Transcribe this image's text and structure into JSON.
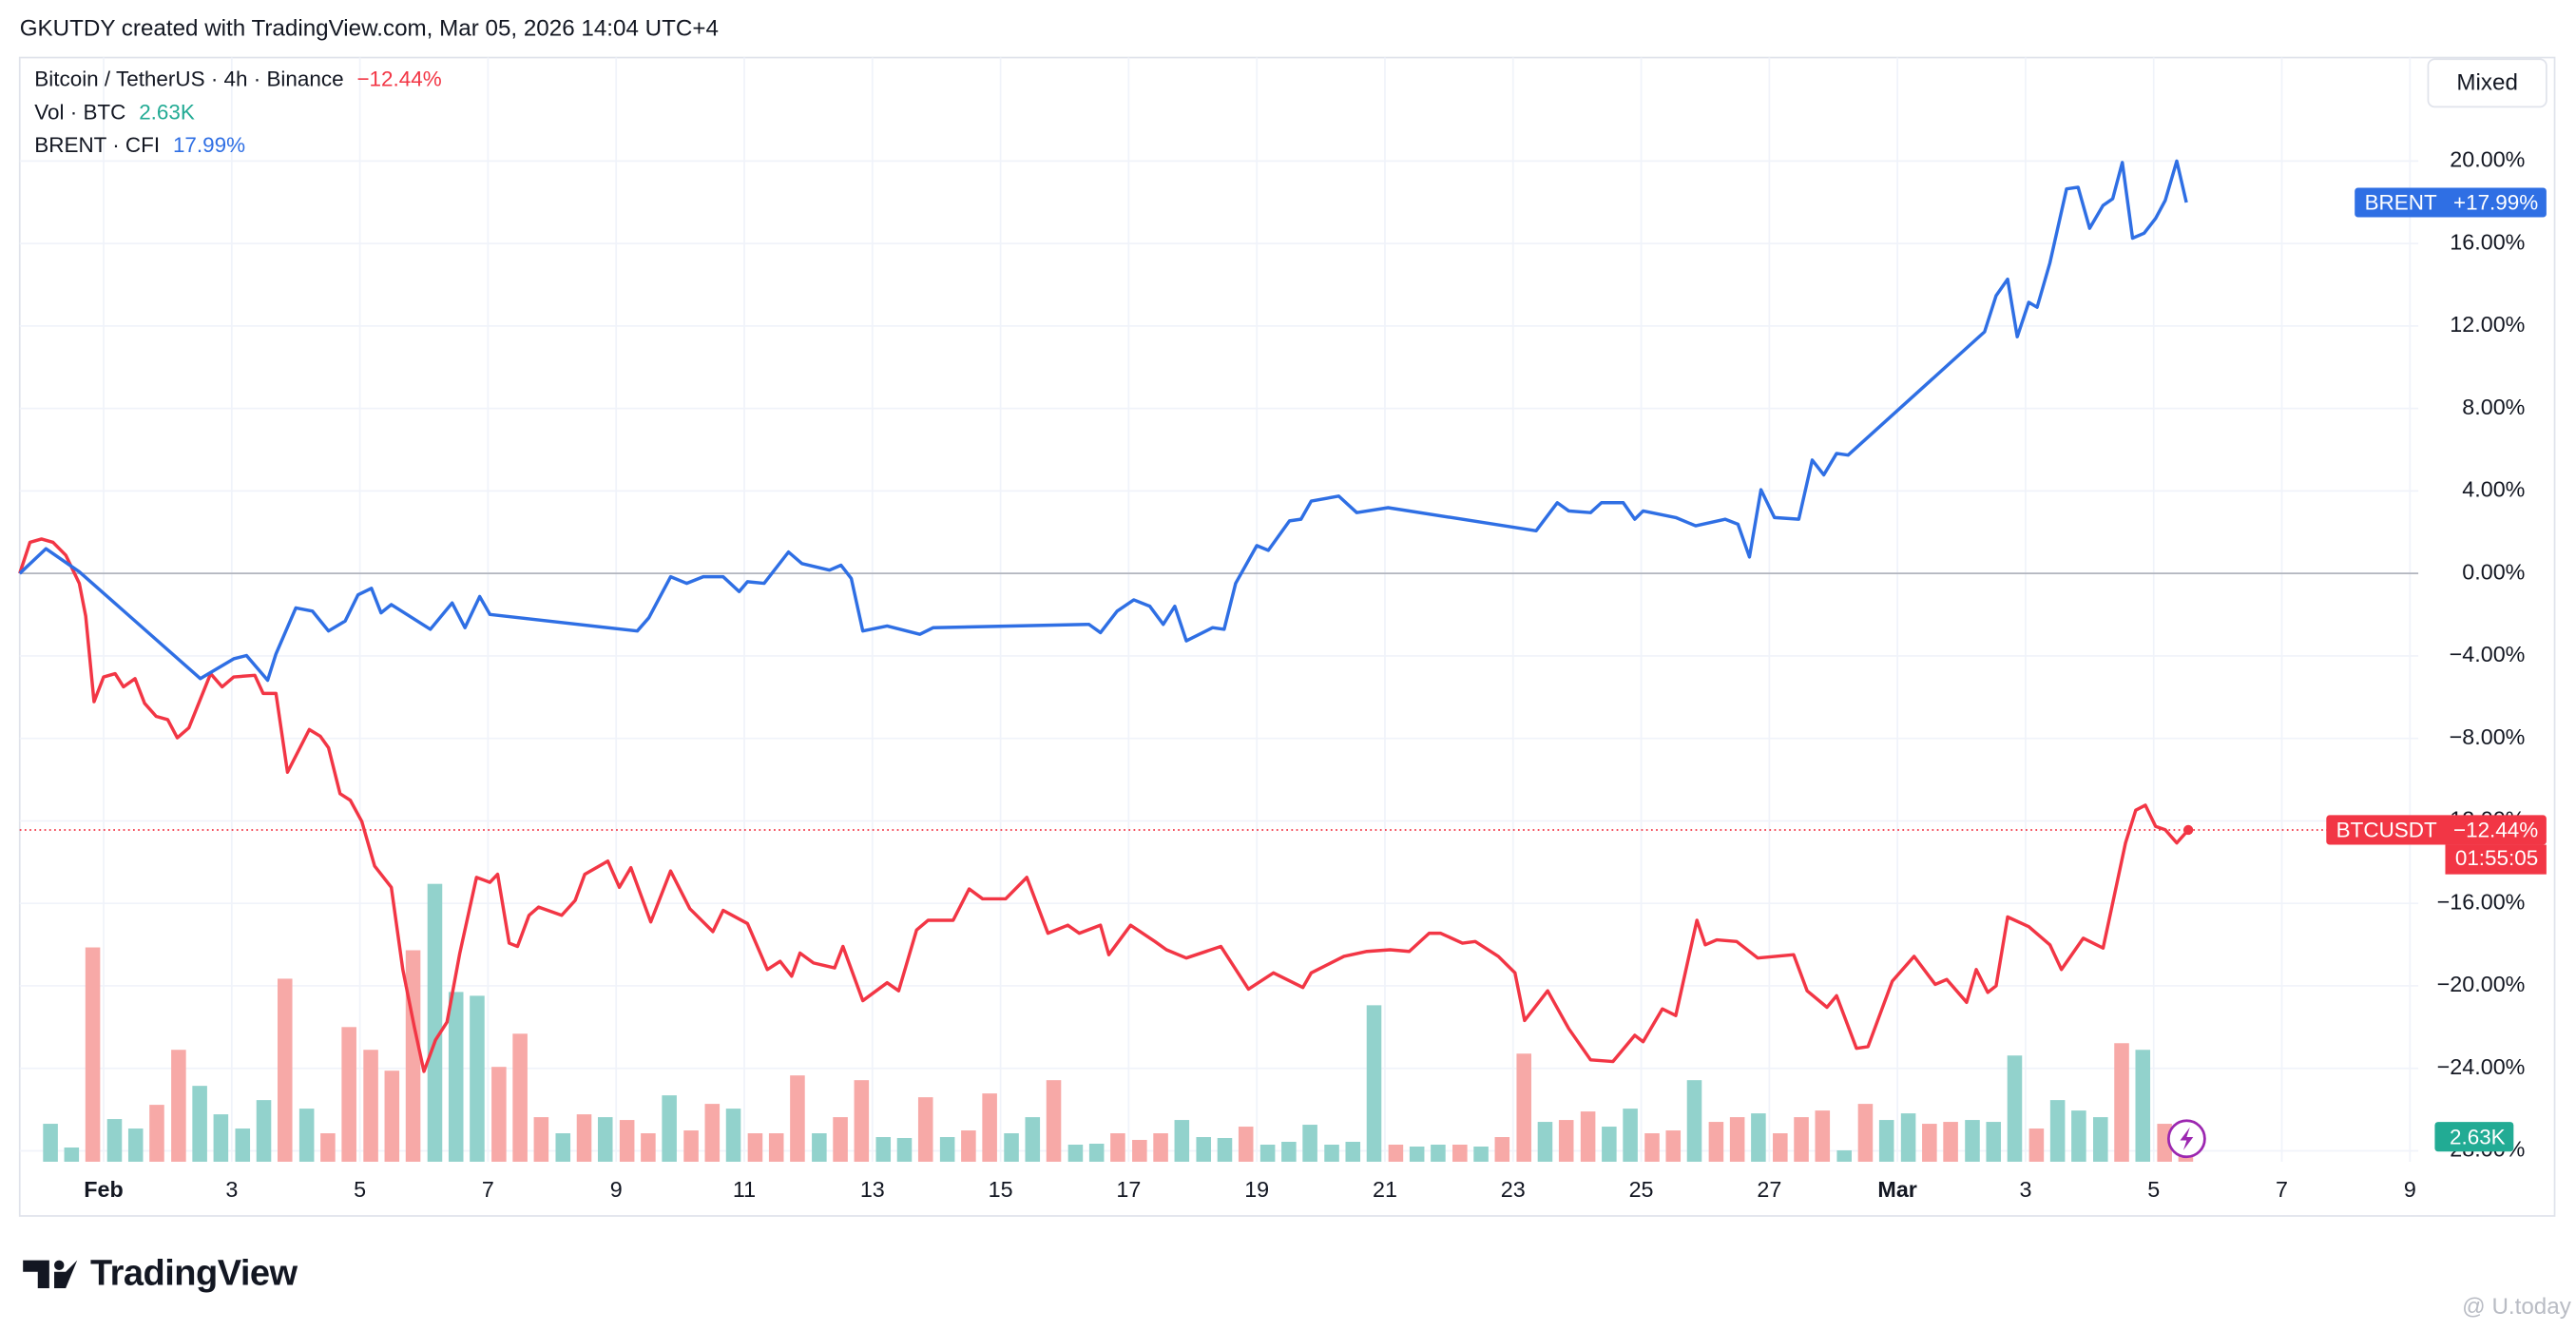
{
  "header": "GKUTDY created with TradingView.com, Mar 05, 2026 14:04 UTC+4",
  "toolbar": {
    "scale_mode": "Mixed"
  },
  "footer": {
    "logo": "TradingView",
    "watermark": "@ U.today"
  },
  "chart_data": {
    "type": "line",
    "legend": "top-left",
    "grid": true,
    "xlim": [
      -0.31,
      37.13
    ],
    "xticks": [
      {
        "value": 1,
        "label": "Feb"
      },
      3,
      5,
      7,
      9,
      11,
      13,
      15,
      17,
      19,
      21,
      23,
      25,
      27,
      {
        "value": 29,
        "label": "Mar"
      },
      {
        "value": 31,
        "label": "3"
      },
      {
        "value": 33,
        "label": "5"
      },
      {
        "value": 35,
        "label": "7"
      },
      {
        "value": 37,
        "label": "9"
      }
    ],
    "ylim": [
      -28.53,
      25.02
    ],
    "yticks": [
      {
        "value": 20,
        "label": "20.00%"
      },
      {
        "value": 16,
        "label": "16.00%"
      },
      {
        "value": 12,
        "label": "12.00%"
      },
      {
        "value": 8,
        "label": "8.00%"
      },
      {
        "value": 4,
        "label": "4.00%"
      },
      {
        "value": 0,
        "label": "0.00%"
      },
      {
        "value": -4,
        "label": "−4.00%"
      },
      {
        "value": -8,
        "label": "−8.00%"
      },
      {
        "value": -12,
        "label": "−12.00%"
      },
      {
        "value": -16,
        "label": "−16.00%"
      },
      {
        "value": -20,
        "label": "−20.00%"
      },
      {
        "value": -24,
        "label": "−24.00%"
      },
      {
        "value": -28,
        "label": "−28.00%"
      }
    ],
    "series": [
      {
        "name": "Bitcoin / TetherUS · 4h · Binance",
        "color": "#f23645",
        "legend_label": "−12.44%",
        "badge": "BTCUSDT",
        "badge_label": "−12.44%",
        "countdown": "01:55:05",
        "x": [
          -0.31,
          -0.15,
          0.03,
          0.21,
          0.41,
          0.62,
          0.72,
          0.85,
          1.0,
          1.18,
          1.31,
          1.49,
          1.64,
          1.82,
          2.0,
          2.15,
          2.33,
          2.67,
          2.85,
          3.03,
          3.36,
          3.49,
          3.69,
          3.87,
          4.21,
          4.38,
          4.51,
          4.69,
          4.85,
          5.03,
          5.23,
          5.49,
          5.67,
          5.85,
          6.0,
          6.18,
          6.36,
          6.56,
          6.82,
          7.03,
          7.15,
          7.33,
          7.46,
          7.64,
          7.79,
          8.15,
          8.36,
          8.51,
          8.87,
          9.05,
          9.23,
          9.54,
          9.85,
          10.15,
          10.51,
          10.67,
          11.05,
          11.36,
          11.56,
          11.74,
          11.87,
          12.08,
          12.41,
          12.54,
          12.85,
          13.23,
          13.41,
          13.69,
          13.87,
          14.26,
          14.51,
          14.72,
          15.08,
          15.41,
          15.74,
          16.05,
          16.23,
          16.56,
          16.69,
          17.03,
          17.41,
          17.59,
          17.9,
          18.44,
          18.87,
          19.26,
          19.72,
          19.85,
          20.36,
          20.72,
          21.08,
          21.38,
          21.69,
          21.87,
          22.21,
          22.41,
          22.77,
          23.03,
          23.18,
          23.54,
          23.87,
          24.21,
          24.56,
          24.9,
          25.03,
          25.33,
          25.54,
          25.87,
          26.0,
          26.18,
          26.49,
          26.82,
          27.38,
          27.59,
          27.9,
          28.05,
          28.36,
          28.54,
          28.92,
          29.26,
          29.59,
          29.77,
          30.08,
          30.23,
          30.41,
          30.54,
          30.72,
          31.05,
          31.38,
          31.56,
          31.9,
          32.21,
          32.56,
          32.72,
          32.87,
          33.03,
          33.18,
          33.36,
          33.54
        ],
        "values": [
          0,
          1.51,
          1.67,
          1.51,
          0.88,
          -0.48,
          -2.07,
          -6.22,
          -5.02,
          -4.86,
          -5.5,
          -5.1,
          -6.3,
          -6.93,
          -7.09,
          -7.97,
          -7.49,
          -4.86,
          -5.5,
          -5.02,
          -4.94,
          -5.82,
          -5.82,
          -9.64,
          -7.57,
          -7.89,
          -8.45,
          -10.68,
          -11.0,
          -12.03,
          -14.19,
          -15.22,
          -19.21,
          -22.0,
          -24.15,
          -22.63,
          -21.76,
          -18.41,
          -14.74,
          -14.98,
          -14.59,
          -17.93,
          -18.09,
          -16.58,
          -16.18,
          -16.58,
          -15.86,
          -14.59,
          -13.95,
          -15.22,
          -14.27,
          -16.9,
          -14.43,
          -16.26,
          -17.37,
          -16.34,
          -16.98,
          -19.21,
          -18.81,
          -19.53,
          -18.41,
          -18.89,
          -19.13,
          -18.09,
          -20.72,
          -19.85,
          -20.24,
          -17.29,
          -16.82,
          -16.82,
          -15.3,
          -15.78,
          -15.78,
          -14.74,
          -17.45,
          -17.06,
          -17.45,
          -17.06,
          -18.49,
          -17.06,
          -17.85,
          -18.25,
          -18.65,
          -18.09,
          -20.16,
          -19.37,
          -20.08,
          -19.37,
          -18.57,
          -18.33,
          -18.25,
          -18.33,
          -17.45,
          -17.45,
          -17.93,
          -17.85,
          -18.57,
          -19.37,
          -21.68,
          -20.24,
          -22.08,
          -23.59,
          -23.67,
          -22.4,
          -22.71,
          -21.12,
          -21.44,
          -16.82,
          -18.01,
          -17.77,
          -17.85,
          -18.65,
          -18.49,
          -20.24,
          -21.04,
          -20.48,
          -23.03,
          -22.95,
          -19.77,
          -18.57,
          -19.93,
          -19.69,
          -20.8,
          -19.21,
          -20.32,
          -20.0,
          -16.66,
          -17.13,
          -18.01,
          -19.21,
          -17.69,
          -18.17,
          -13.07,
          -11.48,
          -11.24,
          -12.27,
          -12.43,
          -13.07,
          -12.44
        ]
      },
      {
        "name": "BRENT · CFI",
        "color": "#2f6fe4",
        "legend_label": "17.99%",
        "badge": "BRENT",
        "badge_label": "+17.99%",
        "x": [
          -0.31,
          0.1,
          0.62,
          2.51,
          3.03,
          3.23,
          3.56,
          3.69,
          4.0,
          4.26,
          4.51,
          4.77,
          4.97,
          5.18,
          5.33,
          5.49,
          6.1,
          6.44,
          6.64,
          6.87,
          7.03,
          9.33,
          9.51,
          9.85,
          10.1,
          10.36,
          10.67,
          10.92,
          11.05,
          11.31,
          11.69,
          11.9,
          12.33,
          12.51,
          12.67,
          12.85,
          13.23,
          13.74,
          13.95,
          16.38,
          16.56,
          16.82,
          17.08,
          17.33,
          17.54,
          17.72,
          17.9,
          18.31,
          18.49,
          18.67,
          19.0,
          19.18,
          19.51,
          19.69,
          19.85,
          20.28,
          20.56,
          21.05,
          23.36,
          23.69,
          23.87,
          24.21,
          24.38,
          24.72,
          24.9,
          25.03,
          25.54,
          25.85,
          26.31,
          26.51,
          26.69,
          26.87,
          27.08,
          27.46,
          27.67,
          27.85,
          28.05,
          28.23,
          30.36,
          30.54,
          30.72,
          30.87,
          31.05,
          31.18,
          31.38,
          31.64,
          31.82,
          32.0,
          32.21,
          32.36,
          32.51,
          32.67,
          32.85,
          33.03,
          33.18,
          33.36,
          33.51
        ],
        "values": [
          0,
          1.2,
          0.08,
          -5.1,
          -4.14,
          -3.98,
          -5.18,
          -3.9,
          -1.67,
          -1.83,
          -2.79,
          -2.31,
          -1.04,
          -0.72,
          -1.91,
          -1.51,
          -2.71,
          -1.43,
          -2.63,
          -1.12,
          -1.99,
          -2.79,
          -2.15,
          -0.16,
          -0.48,
          -0.16,
          -0.16,
          -0.88,
          -0.4,
          -0.48,
          1.04,
          0.48,
          0.16,
          0.4,
          -0.24,
          -2.79,
          -2.55,
          -2.95,
          -2.63,
          -2.47,
          -2.87,
          -1.83,
          -1.28,
          -1.59,
          -2.47,
          -1.59,
          -3.27,
          -2.63,
          -2.71,
          -0.48,
          1.35,
          1.12,
          2.55,
          2.63,
          3.51,
          3.75,
          2.95,
          3.19,
          2.07,
          3.43,
          3.03,
          2.95,
          3.43,
          3.43,
          2.63,
          3.03,
          2.71,
          2.31,
          2.63,
          2.39,
          0.8,
          4.06,
          2.71,
          2.63,
          5.5,
          4.78,
          5.82,
          5.74,
          11.72,
          13.47,
          14.27,
          11.48,
          13.15,
          12.91,
          15.06,
          18.65,
          18.73,
          16.74,
          17.85,
          18.17,
          19.93,
          16.26,
          16.5,
          17.22,
          18.09,
          20.0,
          17.99
        ]
      }
    ],
    "volume": {
      "name": "Vol · BTC",
      "last_label": "2.63K",
      "color": "#22ab94",
      "ylim": [
        0,
        35
      ],
      "x": [
        0.17,
        0.5,
        0.83,
        1.17,
        1.5,
        1.83,
        2.17,
        2.5,
        2.83,
        3.17,
        3.5,
        3.83,
        4.17,
        4.5,
        4.83,
        5.17,
        5.5,
        5.83,
        6.17,
        6.5,
        6.83,
        7.17,
        7.5,
        7.83,
        8.17,
        8.5,
        8.83,
        9.17,
        9.5,
        9.83,
        10.17,
        10.5,
        10.83,
        11.17,
        11.5,
        11.83,
        12.17,
        12.5,
        12.83,
        13.17,
        13.5,
        13.83,
        14.17,
        14.5,
        14.83,
        15.17,
        15.5,
        15.83,
        16.17,
        16.5,
        16.83,
        17.17,
        17.5,
        17.83,
        18.17,
        18.5,
        18.83,
        19.17,
        19.5,
        19.83,
        20.17,
        20.5,
        20.83,
        21.17,
        21.5,
        21.83,
        22.17,
        22.5,
        22.83,
        23.17,
        23.5,
        23.83,
        24.17,
        24.5,
        24.83,
        25.17,
        25.5,
        25.83,
        26.17,
        26.5,
        26.83,
        27.17,
        27.5,
        27.83,
        28.17,
        28.5,
        28.83,
        29.17,
        29.5,
        29.83,
        30.17,
        30.5,
        30.83,
        31.17,
        31.5,
        31.83,
        32.17,
        32.5,
        32.83,
        33.17,
        33.5
      ],
      "values": [
        4.0,
        1.5,
        22.6,
        4.5,
        3.5,
        6.0,
        11.8,
        8.0,
        5.0,
        3.5,
        6.5,
        19.3,
        5.6,
        3.0,
        14.2,
        11.8,
        9.6,
        22.3,
        29.3,
        17.9,
        17.5,
        10.0,
        13.5,
        4.7,
        3.0,
        5.0,
        4.7,
        4.4,
        3.0,
        7.0,
        3.3,
        6.1,
        5.6,
        3.0,
        3.0,
        9.1,
        3.0,
        4.7,
        8.6,
        2.6,
        2.5,
        6.8,
        2.6,
        3.3,
        7.2,
        3.0,
        4.7,
        8.6,
        1.8,
        1.9,
        3.0,
        2.3,
        3.0,
        4.4,
        2.6,
        2.5,
        3.7,
        1.8,
        2.1,
        3.9,
        1.8,
        2.1,
        16.5,
        1.8,
        1.6,
        1.8,
        1.8,
        1.6,
        2.6,
        11.4,
        4.2,
        4.4,
        5.3,
        3.7,
        5.6,
        3.0,
        3.3,
        8.6,
        4.2,
        4.7,
        5.1,
        3.0,
        4.7,
        5.4,
        1.2,
        6.1,
        4.4,
        5.1,
        4.0,
        4.2,
        4.4,
        4.2,
        11.2,
        3.5,
        6.5,
        5.4,
        4.7,
        12.5,
        11.8,
        4.0,
        2.63
      ],
      "colors": [
        "#92d2cc",
        "#92d2cc",
        "#f7a9a7",
        "#92d2cc",
        "#92d2cc",
        "#f7a9a7",
        "#f7a9a7",
        "#92d2cc",
        "#92d2cc",
        "#92d2cc",
        "#92d2cc",
        "#f7a9a7",
        "#92d2cc",
        "#f7a9a7",
        "#f7a9a7",
        "#f7a9a7",
        "#f7a9a7",
        "#f7a9a7",
        "#92d2cc",
        "#92d2cc",
        "#92d2cc",
        "#f7a9a7",
        "#f7a9a7",
        "#f7a9a7",
        "#92d2cc",
        "#f7a9a7",
        "#92d2cc",
        "#f7a9a7",
        "#f7a9a7",
        "#92d2cc",
        "#f7a9a7",
        "#f7a9a7",
        "#92d2cc",
        "#f7a9a7",
        "#f7a9a7",
        "#f7a9a7",
        "#92d2cc",
        "#f7a9a7",
        "#f7a9a7",
        "#92d2cc",
        "#92d2cc",
        "#f7a9a7",
        "#92d2cc",
        "#f7a9a7",
        "#f7a9a7",
        "#92d2cc",
        "#92d2cc",
        "#f7a9a7",
        "#92d2cc",
        "#92d2cc",
        "#f7a9a7",
        "#f7a9a7",
        "#f7a9a7",
        "#92d2cc",
        "#92d2cc",
        "#92d2cc",
        "#f7a9a7",
        "#92d2cc",
        "#92d2cc",
        "#92d2cc",
        "#92d2cc",
        "#92d2cc",
        "#92d2cc",
        "#f7a9a7",
        "#92d2cc",
        "#92d2cc",
        "#f7a9a7",
        "#92d2cc",
        "#f7a9a7",
        "#f7a9a7",
        "#92d2cc",
        "#f7a9a7",
        "#f7a9a7",
        "#92d2cc",
        "#92d2cc",
        "#f7a9a7",
        "#f7a9a7",
        "#92d2cc",
        "#f7a9a7",
        "#f7a9a7",
        "#92d2cc",
        "#f7a9a7",
        "#f7a9a7",
        "#f7a9a7",
        "#92d2cc",
        "#f7a9a7",
        "#92d2cc",
        "#92d2cc",
        "#f7a9a7",
        "#f7a9a7",
        "#92d2cc",
        "#92d2cc",
        "#92d2cc",
        "#f7a9a7",
        "#92d2cc",
        "#92d2cc",
        "#92d2cc",
        "#f7a9a7",
        "#92d2cc",
        "#f7a9a7",
        "#f7a9a7"
      ]
    }
  }
}
